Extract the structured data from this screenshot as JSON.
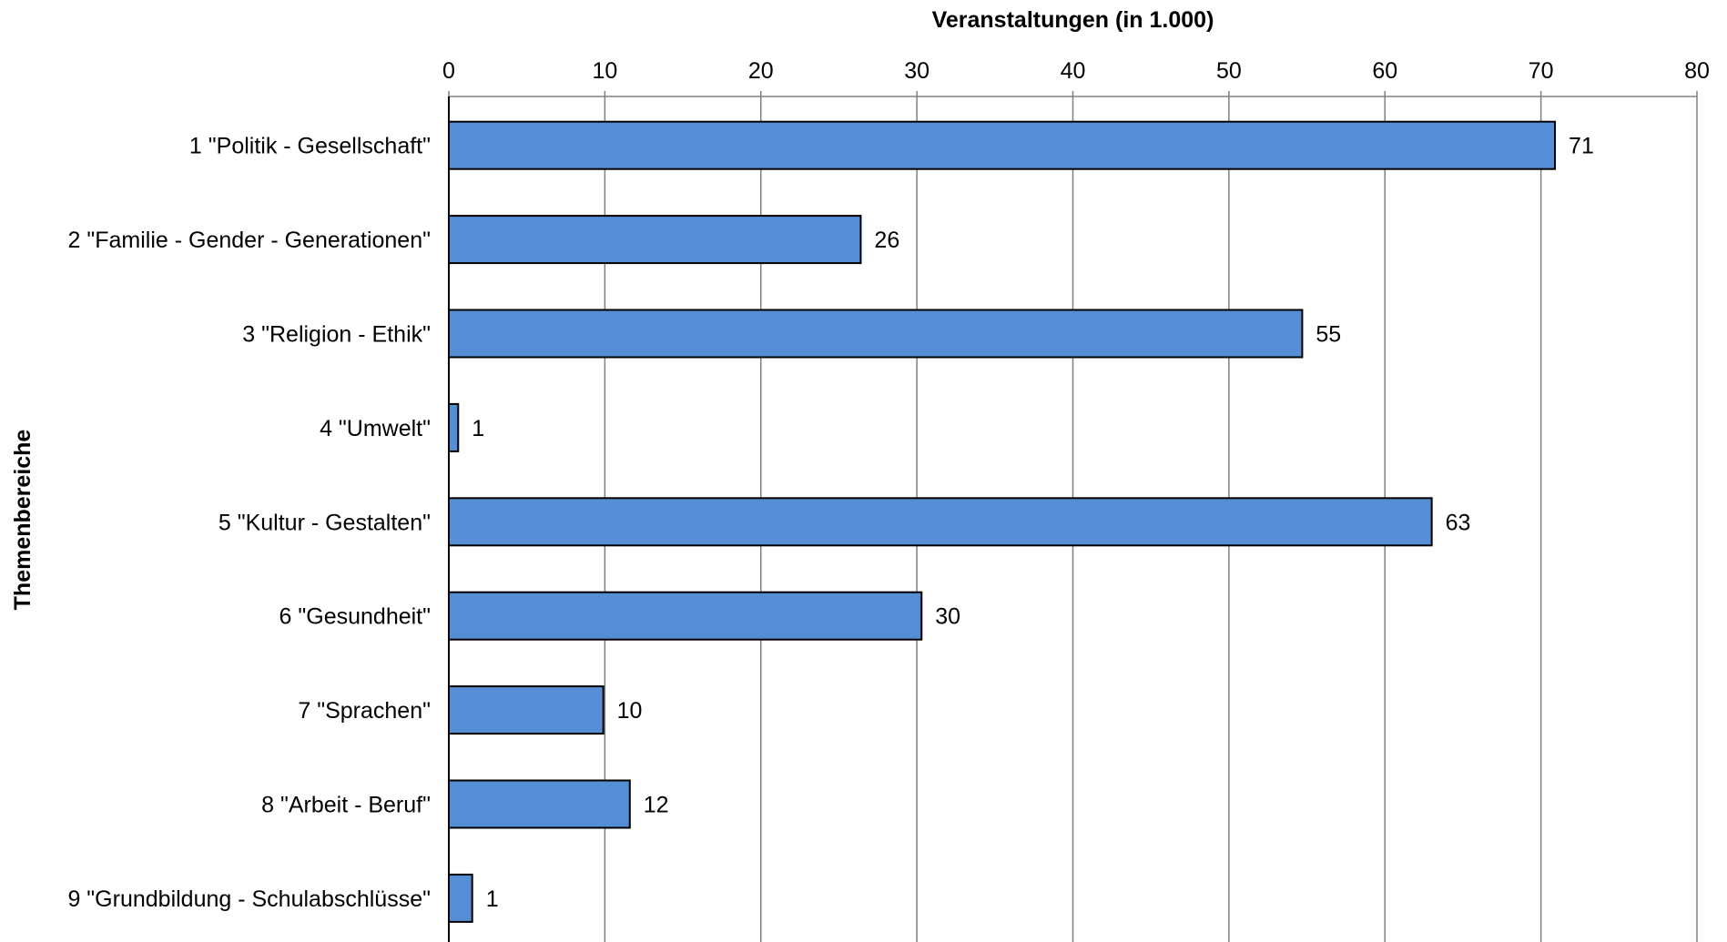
{
  "chart_data": {
    "type": "bar",
    "orientation": "horizontal",
    "title": "",
    "xlabel": "Veranstaltungen (in 1.000)",
    "ylabel": "Themenbereiche",
    "xlim": [
      0,
      80
    ],
    "x_ticks": [
      0,
      10,
      20,
      30,
      40,
      50,
      60,
      70,
      80
    ],
    "x_axis_position": "top",
    "grid": true,
    "legend": "none",
    "bar_color": "#558ed5",
    "bar_outline_color": "#000000",
    "categories": [
      "1 \"Politik - Gesellschaft\"",
      "2 \"Familie - Gender - Generationen\"",
      "3 \"Religion - Ethik\"",
      "4 \"Umwelt\"",
      "5 \"Kultur - Gestalten\"",
      "6 \"Gesundheit\"",
      "7 \"Sprachen\"",
      "8 \"Arbeit - Beruf\"",
      "9 \"Grundbildung - Schulabschlüsse\""
    ],
    "values": [
      70.9,
      26.4,
      54.7,
      0.6,
      63.0,
      30.3,
      9.9,
      11.6,
      1.5
    ],
    "data_labels": [
      "71",
      "26",
      "55",
      "1",
      "63",
      "30",
      "10",
      "12",
      "1"
    ]
  }
}
